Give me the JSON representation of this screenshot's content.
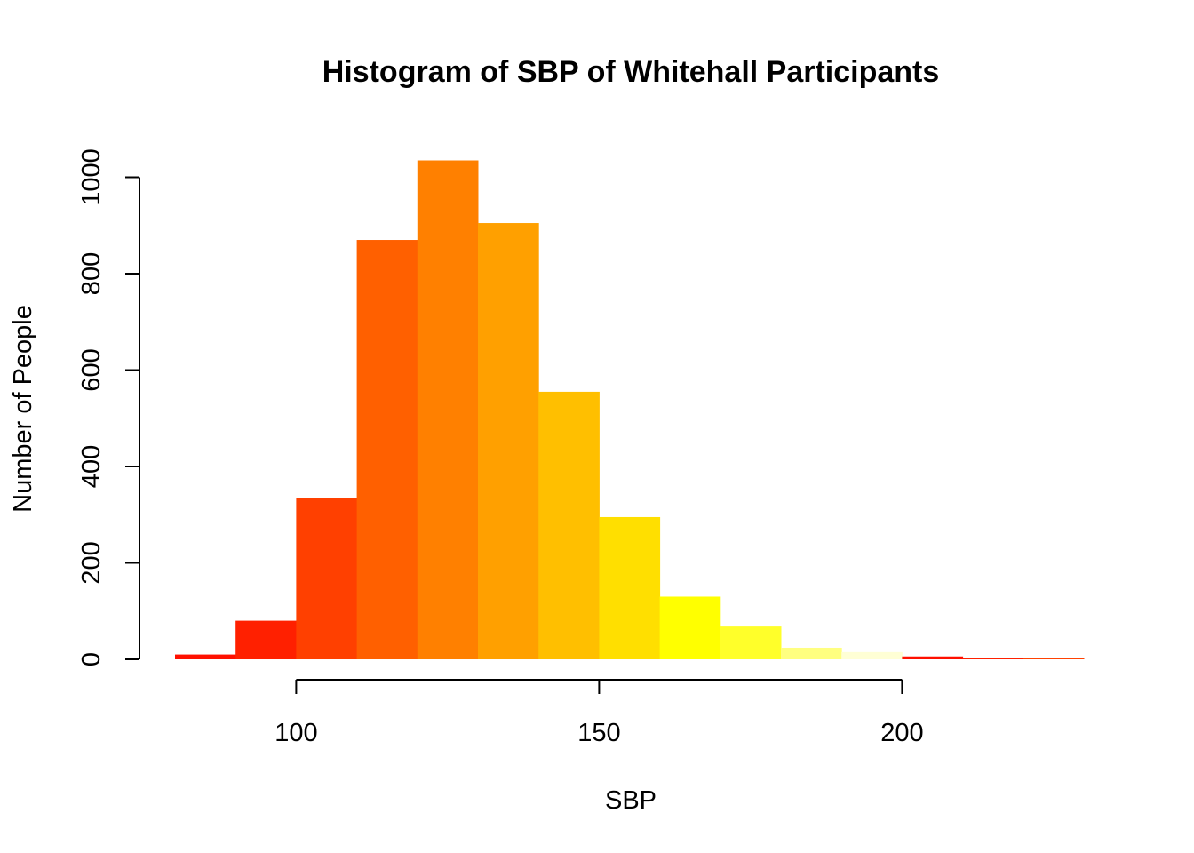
{
  "chart_data": {
    "type": "bar",
    "title": "Histogram of SBP of Whitehall Participants",
    "xlabel": "SBP",
    "ylabel": "Number of People",
    "bin_edges": [
      80,
      90,
      100,
      110,
      120,
      130,
      140,
      150,
      160,
      170,
      180,
      190,
      200,
      210,
      220,
      230
    ],
    "values": [
      10,
      80,
      335,
      870,
      1035,
      905,
      555,
      295,
      130,
      68,
      24,
      15,
      6,
      3,
      2
    ],
    "colors": [
      "#FF1000",
      "#FF2000",
      "#FF4000",
      "#FF6000",
      "#FF8000",
      "#FFA000",
      "#FFBF00",
      "#FFDF00",
      "#FFFF00",
      "#FFFF2A",
      "#FFFF80",
      "#FFFFD5",
      "#FF1000",
      "#FF2000",
      "#FF4000"
    ],
    "xlim": [
      80,
      230
    ],
    "ylim": [
      0,
      1040
    ],
    "x_ticks": [
      100,
      150,
      200
    ],
    "y_ticks": [
      0,
      200,
      400,
      600,
      800,
      1000
    ],
    "grid": false
  }
}
